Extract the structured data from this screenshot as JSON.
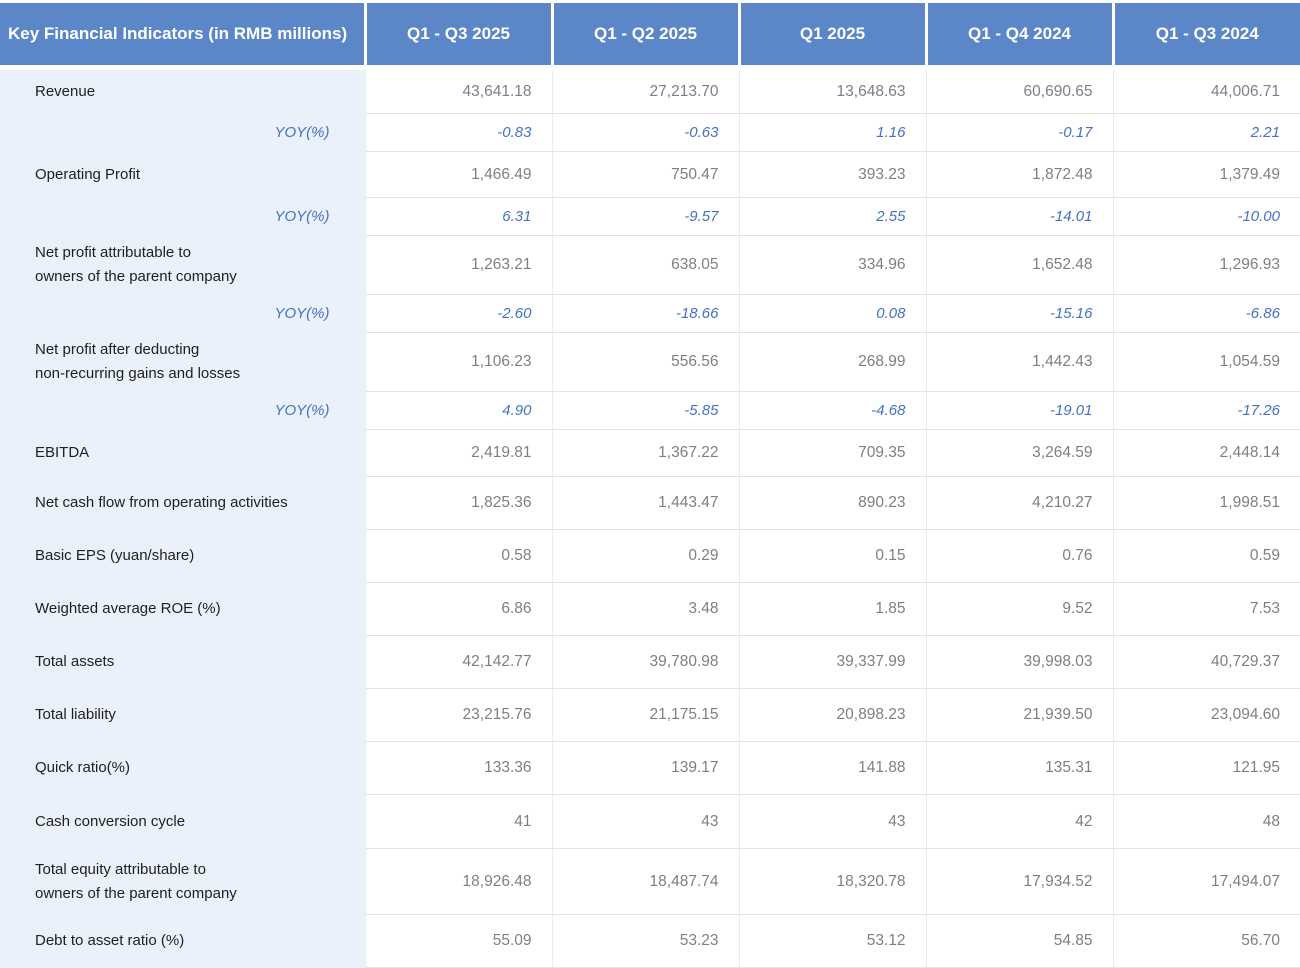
{
  "title": "Key Financial Indicators (in RMB millions)",
  "columns": [
    "Q1 - Q3 2025",
    "Q1 - Q2 2025",
    "Q1 2025",
    "Q1 - Q4 2024",
    "Q1 - Q3 2024"
  ],
  "rows": [
    {
      "type": "metric",
      "label": "Revenue",
      "values": [
        "43,641.18",
        "27,213.70",
        "13,648.63",
        "60,690.65",
        "44,006.71"
      ]
    },
    {
      "type": "yoy",
      "label": "YOY(%)",
      "values": [
        "-0.83",
        "-0.63",
        "1.16",
        "-0.17",
        "2.21"
      ]
    },
    {
      "type": "metric",
      "label": "Operating Profit",
      "values": [
        "1,466.49",
        "750.47",
        "393.23",
        "1,872.48",
        "1,379.49"
      ]
    },
    {
      "type": "yoy",
      "label": "YOY(%)",
      "values": [
        "6.31",
        "-9.57",
        "2.55",
        "-14.01",
        "-10.00"
      ]
    },
    {
      "type": "metric",
      "label": "Net profit attributable to\nowners of the parent company",
      "values": [
        "1,263.21",
        "638.05",
        "334.96",
        "1,652.48",
        "1,296.93"
      ]
    },
    {
      "type": "yoy",
      "label": "YOY(%)",
      "values": [
        "-2.60",
        "-18.66",
        "0.08",
        "-15.16",
        "-6.86"
      ]
    },
    {
      "type": "metric",
      "label": "Net profit after deducting\nnon-recurring gains and losses",
      "values": [
        "1,106.23",
        "556.56",
        "268.99",
        "1,442.43",
        "1,054.59"
      ]
    },
    {
      "type": "yoy",
      "label": "YOY(%)",
      "values": [
        "4.90",
        "-5.85",
        "-4.68",
        "-19.01",
        "-17.26"
      ]
    },
    {
      "type": "metric",
      "label": "EBITDA",
      "values": [
        "2,419.81",
        "1,367.22",
        "709.35",
        "3,264.59",
        "2,448.14"
      ]
    },
    {
      "type": "metric",
      "label": "Net cash flow from operating activities",
      "values": [
        "1,825.36",
        "1,443.47",
        "890.23",
        "4,210.27",
        "1,998.51"
      ]
    },
    {
      "type": "metric",
      "label": "Basic EPS (yuan/share)",
      "values": [
        "0.58",
        "0.29",
        "0.15",
        "0.76",
        "0.59"
      ]
    },
    {
      "type": "metric",
      "label": "Weighted average ROE (%)",
      "values": [
        "6.86",
        "3.48",
        "1.85",
        "9.52",
        "7.53"
      ]
    },
    {
      "type": "metric",
      "label": "Total assets",
      "values": [
        "42,142.77",
        "39,780.98",
        "39,337.99",
        "39,998.03",
        "40,729.37"
      ]
    },
    {
      "type": "metric",
      "label": "Total liability",
      "values": [
        "23,215.76",
        "21,175.15",
        "20,898.23",
        "21,939.50",
        "23,094.60"
      ]
    },
    {
      "type": "metric",
      "label": "Quick ratio(%)",
      "values": [
        "133.36",
        "139.17",
        "141.88",
        "135.31",
        "121.95"
      ]
    },
    {
      "type": "metric",
      "label": "Cash conversion cycle",
      "values": [
        "41",
        "43",
        "43",
        "42",
        "48"
      ]
    },
    {
      "type": "metric",
      "label": "Total equity attributable to\nowners of the parent company",
      "values": [
        "18,926.48",
        "18,487.74",
        "18,320.78",
        "17,934.52",
        "17,494.07"
      ]
    },
    {
      "type": "metric",
      "label": "Debt to asset ratio (%)",
      "values": [
        "55.09",
        "53.23",
        "53.12",
        "54.85",
        "56.70"
      ]
    }
  ],
  "colors": {
    "header_bg": "#5B86C8",
    "header_text": "#FFFFFF",
    "label_col_bg": "#EAF1FA",
    "label_text": "#1F1F1F",
    "value_text": "#7F7F7F",
    "yoy_text": "#4472C4",
    "grid_line": "#E2E2E2"
  },
  "chart_data": {
    "type": "table",
    "title": "Key Financial Indicators (in RMB millions)",
    "categories": [
      "Q1 - Q3 2025",
      "Q1 - Q2 2025",
      "Q1 2025",
      "Q1 - Q4 2024",
      "Q1 - Q3 2024"
    ],
    "series": [
      {
        "name": "Revenue",
        "values": [
          43641.18,
          27213.7,
          13648.63,
          60690.65,
          44006.71
        ]
      },
      {
        "name": "Revenue YOY(%)",
        "values": [
          -0.83,
          -0.63,
          1.16,
          -0.17,
          2.21
        ]
      },
      {
        "name": "Operating Profit",
        "values": [
          1466.49,
          750.47,
          393.23,
          1872.48,
          1379.49
        ]
      },
      {
        "name": "Operating Profit YOY(%)",
        "values": [
          6.31,
          -9.57,
          2.55,
          -14.01,
          -10.0
        ]
      },
      {
        "name": "Net profit attributable to owners of the parent company",
        "values": [
          1263.21,
          638.05,
          334.96,
          1652.48,
          1296.93
        ]
      },
      {
        "name": "Net profit attributable YOY(%)",
        "values": [
          -2.6,
          -18.66,
          0.08,
          -15.16,
          -6.86
        ]
      },
      {
        "name": "Net profit after deducting non-recurring gains and losses",
        "values": [
          1106.23,
          556.56,
          268.99,
          1442.43,
          1054.59
        ]
      },
      {
        "name": "Net profit after deducting YOY(%)",
        "values": [
          4.9,
          -5.85,
          -4.68,
          -19.01,
          -17.26
        ]
      },
      {
        "name": "EBITDA",
        "values": [
          2419.81,
          1367.22,
          709.35,
          3264.59,
          2448.14
        ]
      },
      {
        "name": "Net cash flow from operating activities",
        "values": [
          1825.36,
          1443.47,
          890.23,
          4210.27,
          1998.51
        ]
      },
      {
        "name": "Basic EPS (yuan/share)",
        "values": [
          0.58,
          0.29,
          0.15,
          0.76,
          0.59
        ]
      },
      {
        "name": "Weighted average ROE (%)",
        "values": [
          6.86,
          3.48,
          1.85,
          9.52,
          7.53
        ]
      },
      {
        "name": "Total assets",
        "values": [
          42142.77,
          39780.98,
          39337.99,
          39998.03,
          40729.37
        ]
      },
      {
        "name": "Total liability",
        "values": [
          23215.76,
          21175.15,
          20898.23,
          21939.5,
          23094.6
        ]
      },
      {
        "name": "Quick ratio(%)",
        "values": [
          133.36,
          139.17,
          141.88,
          135.31,
          121.95
        ]
      },
      {
        "name": "Cash conversion cycle",
        "values": [
          41,
          43,
          43,
          42,
          48
        ]
      },
      {
        "name": "Total equity attributable to owners of the parent company",
        "values": [
          18926.48,
          18487.74,
          18320.78,
          17934.52,
          17494.07
        ]
      },
      {
        "name": "Debt to asset ratio (%)",
        "values": [
          55.09,
          53.23,
          53.12,
          54.85,
          56.7
        ]
      }
    ]
  }
}
